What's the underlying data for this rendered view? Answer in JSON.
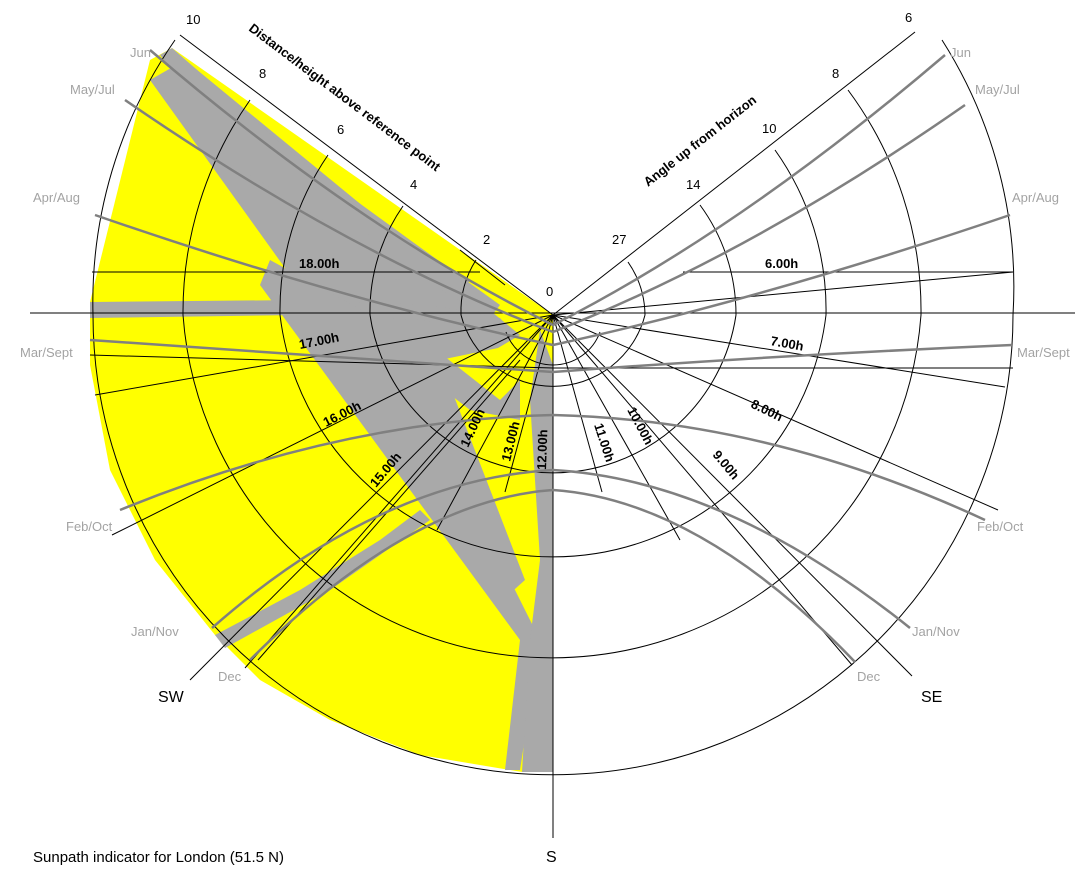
{
  "caption": "Sunpath indicator for London (51.5 N)",
  "left_scale": {
    "title": "Distance/height above reference point",
    "ticks": [
      "10",
      "8",
      "6",
      "4",
      "2"
    ]
  },
  "right_scale": {
    "title": "Angle up from horizon",
    "ticks": [
      "6",
      "8",
      "10",
      "14",
      "27"
    ]
  },
  "center_label": "0",
  "month_labels_left": [
    "Jun",
    "May/Jul",
    "Apr/Aug",
    "Mar/Sept",
    "Feb/Oct",
    "Jan/Nov",
    "Dec"
  ],
  "month_labels_right": [
    "Jun",
    "May/Jul",
    "Apr/Aug",
    "Mar/Sept",
    "Feb/Oct",
    "Jan/Nov",
    "Dec"
  ],
  "hour_labels_pm": [
    "18.00h",
    "17.00h",
    "16.00h",
    "15.00h",
    "14.00h",
    "13.00h",
    "12.00h"
  ],
  "hour_labels_am": [
    "11.00h",
    "10.00h",
    "9.00h",
    "8.00h",
    "7.00h",
    "6.00h"
  ],
  "directions": {
    "sw": "SW",
    "se": "SE",
    "s": "S"
  },
  "colors": {
    "shade": "#ffff00",
    "blocked": "#a9a9a9",
    "sunpath": "#808080",
    "grid": "#000000",
    "label_grey": "#a3a3a3"
  }
}
